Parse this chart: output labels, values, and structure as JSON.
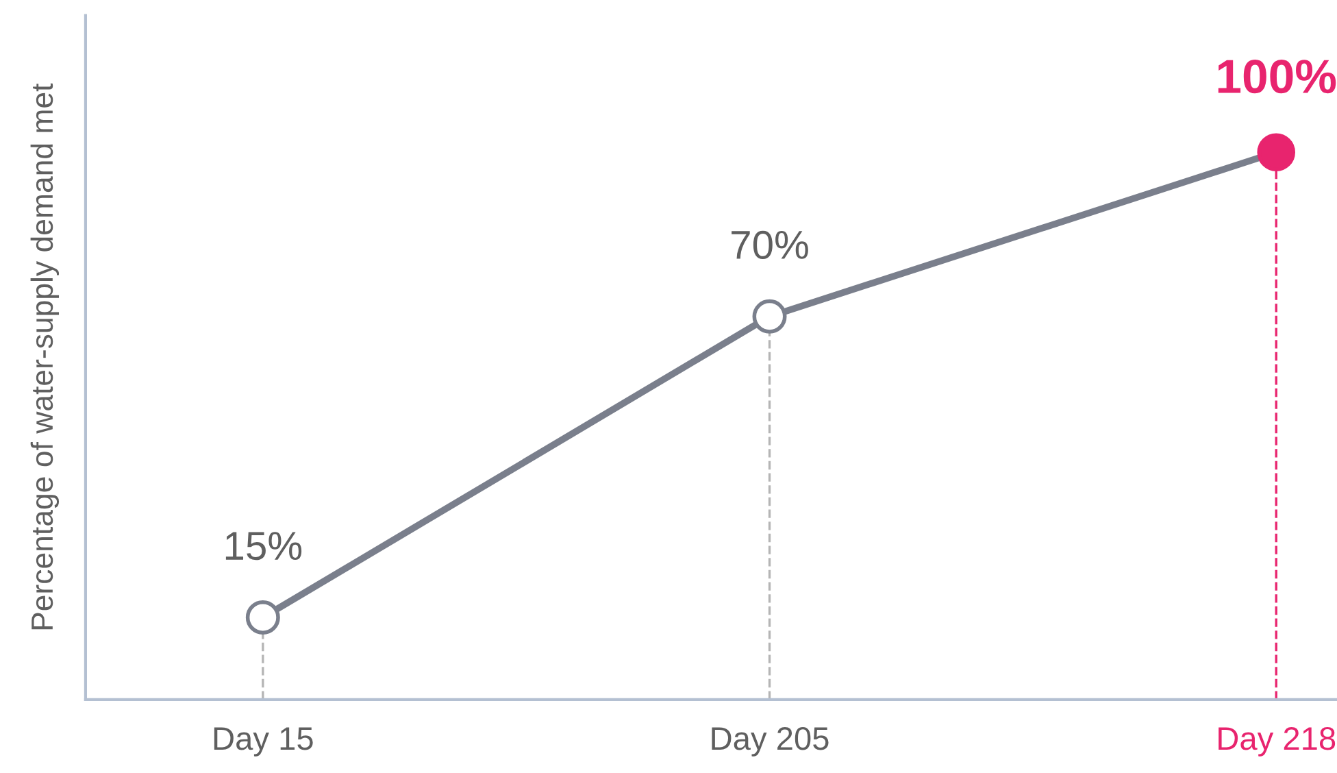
{
  "chart_data": {
    "type": "line",
    "ylabel": "Percentage of water-supply demand met",
    "categories": [
      "Day 15",
      "Day 205",
      "Day 218"
    ],
    "series": [
      {
        "color": "#7a7f8c",
        "values": [
          15,
          70,
          100
        ],
        "colors": [
          "#ffffff",
          "#ffffff",
          "#e8246e"
        ],
        "value_labels": [
          "15%",
          "70%",
          "100%"
        ]
      }
    ],
    "ylim": [
      0,
      125
    ],
    "tick_labels": "x",
    "marker": "circle",
    "line_style": "solid",
    "grid": false,
    "legend": false,
    "ref_lines": [
      {
        "axis": "x",
        "value": "Day 15",
        "color": "#b5b5b5",
        "line_style": "dashed"
      },
      {
        "axis": "x",
        "value": "Day 205",
        "color": "#b5b5b5",
        "line_style": "dashed"
      },
      {
        "axis": "x",
        "value": "Day 218",
        "color": "#e8246e",
        "line_style": "dashed"
      }
    ]
  }
}
